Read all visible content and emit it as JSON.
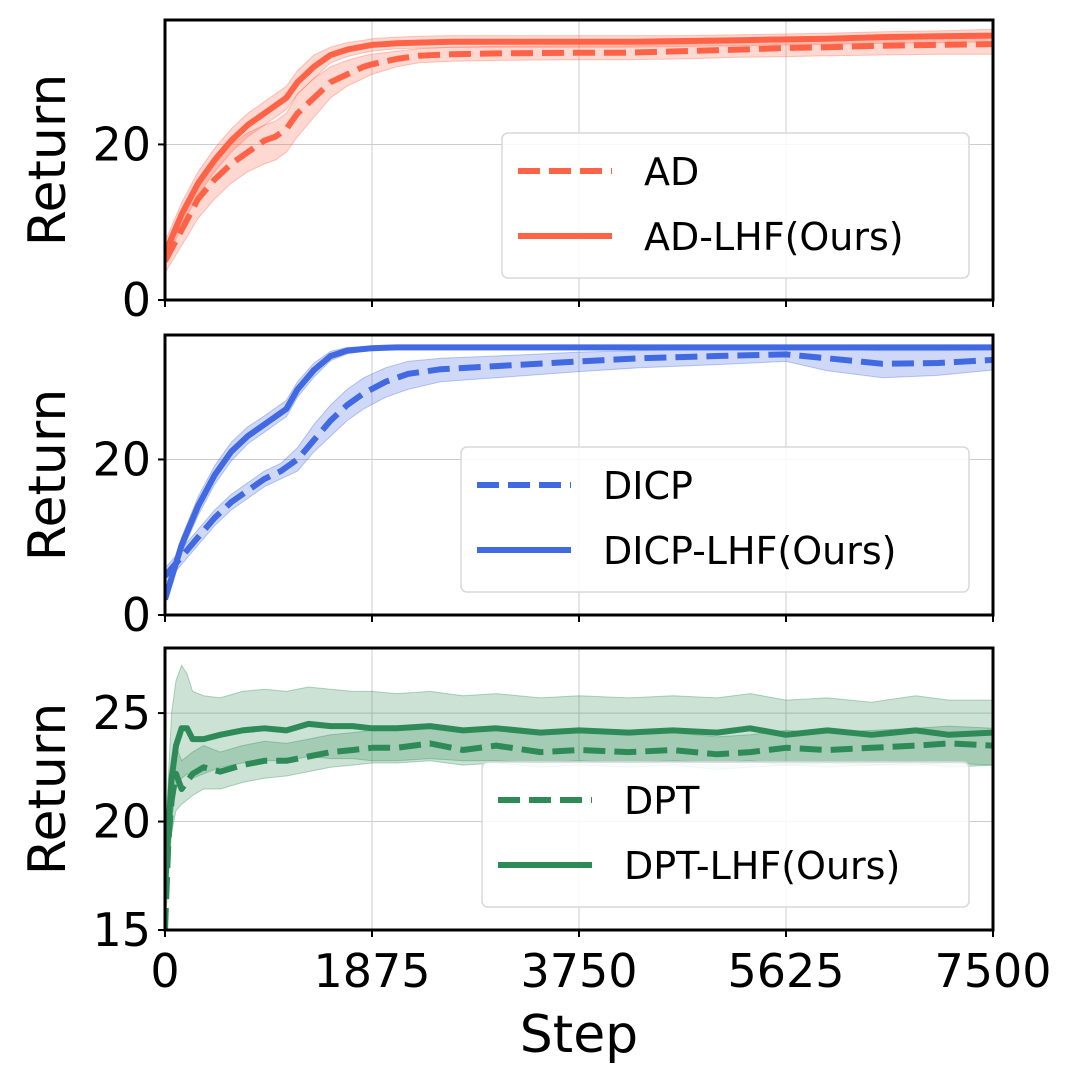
{
  "chart_data": [
    {
      "type": "line",
      "panel": "top",
      "xlabel": "",
      "ylabel": "Return",
      "xlim": [
        0,
        7500
      ],
      "ylim": [
        0,
        36
      ],
      "yticks": [
        0,
        20
      ],
      "xticks": [
        0,
        1875,
        3750,
        5625,
        7500
      ],
      "show_xticklabels": false,
      "grid": true,
      "legend_position": "center-right",
      "series": [
        {
          "name": "AD",
          "style": "dashed",
          "color": "#ff6347",
          "x": [
            0,
            150,
            300,
            450,
            600,
            750,
            900,
            1000,
            1100,
            1200,
            1350,
            1500,
            1650,
            1800,
            1875,
            2100,
            2300,
            2600,
            3000,
            3750,
            4200,
            4700,
            5200,
            5625,
            6000,
            6500,
            7000,
            7500
          ],
          "y": [
            5,
            9,
            13,
            15.5,
            17.5,
            19,
            20.5,
            21,
            22,
            24,
            26,
            28,
            29,
            30,
            30.3,
            31,
            31.4,
            31.6,
            31.7,
            31.8,
            31.8,
            32.0,
            32.2,
            32.4,
            32.5,
            32.7,
            32.8,
            32.9
          ],
          "band_lower": [
            3.5,
            7,
            10.5,
            13,
            15,
            16.5,
            17.5,
            18,
            19,
            21,
            23.5,
            26,
            27.5,
            28.5,
            29,
            30,
            30.5,
            30.7,
            30.8,
            30.9,
            30.9,
            31.0,
            31.2,
            31.3,
            31.4,
            31.5,
            31.6,
            31.6
          ],
          "band_upper": [
            6.5,
            11,
            15,
            18,
            20,
            21.5,
            22.5,
            23,
            24,
            26.5,
            28.5,
            30,
            30.8,
            31.4,
            31.6,
            32,
            32.3,
            32.5,
            32.6,
            32.7,
            32.7,
            32.9,
            33.1,
            33.3,
            33.4,
            33.6,
            33.8,
            34.0
          ]
        },
        {
          "name": "AD-LHF(Ours)",
          "style": "solid",
          "color": "#ff6347",
          "x": [
            0,
            150,
            300,
            450,
            600,
            750,
            900,
            1000,
            1100,
            1200,
            1350,
            1500,
            1650,
            1800,
            1875,
            2100,
            2300,
            2600,
            3000,
            3750,
            4200,
            4700,
            5200,
            5625,
            6000,
            6500,
            7000,
            7500
          ],
          "y": [
            6,
            11,
            15,
            18,
            20.5,
            22.5,
            24,
            25,
            26,
            28,
            30,
            31.5,
            32.2,
            32.6,
            32.8,
            33,
            33.1,
            33.2,
            33.2,
            33.2,
            33.2,
            33.3,
            33.4,
            33.5,
            33.6,
            33.8,
            33.9,
            34.0
          ],
          "band_lower": [
            4.5,
            9.5,
            13.5,
            16.5,
            19,
            21,
            22.5,
            23.5,
            24.5,
            26.5,
            28.5,
            30.5,
            31.3,
            31.8,
            32.0,
            32.3,
            32.4,
            32.5,
            32.5,
            32.5,
            32.5,
            32.6,
            32.7,
            32.8,
            32.9,
            33.0,
            33.1,
            33.2
          ],
          "band_upper": [
            7.5,
            12.5,
            16.5,
            19.5,
            22,
            24,
            25.5,
            26.5,
            27.5,
            29.5,
            31.5,
            32.5,
            33.1,
            33.4,
            33.6,
            33.8,
            33.9,
            34.0,
            34.0,
            34.0,
            34.0,
            34.0,
            34.1,
            34.2,
            34.3,
            34.5,
            34.6,
            34.8
          ]
        }
      ]
    },
    {
      "type": "line",
      "panel": "middle",
      "xlabel": "",
      "ylabel": "Return",
      "xlim": [
        0,
        7500
      ],
      "ylim": [
        0,
        36
      ],
      "yticks": [
        0,
        20
      ],
      "xticks": [
        0,
        1875,
        3750,
        5625,
        7500
      ],
      "show_xticklabels": false,
      "grid": true,
      "legend_position": "center-right",
      "series": [
        {
          "name": "DICP",
          "style": "dashed",
          "color": "#4169e1",
          "x": [
            0,
            150,
            300,
            450,
            600,
            750,
            900,
            1050,
            1200,
            1350,
            1500,
            1650,
            1800,
            2000,
            2200,
            2500,
            3000,
            3750,
            4300,
            5000,
            5625,
            6000,
            6500,
            7000,
            7500
          ],
          "y": [
            5,
            7.5,
            10,
            12.5,
            14.5,
            16,
            17.5,
            18.5,
            20,
            22.5,
            25,
            27,
            28.5,
            30,
            31,
            31.6,
            32,
            32.6,
            33,
            33.3,
            33.5,
            33,
            32.3,
            32.4,
            32.8
          ],
          "band_lower": [
            4,
            6.5,
            9,
            11.5,
            13.5,
            15,
            16.5,
            17.5,
            18.5,
            21,
            23,
            25,
            26.5,
            28,
            29,
            30,
            30.5,
            31.3,
            31.8,
            32.2,
            32.6,
            31.4,
            30.5,
            30.8,
            31.5
          ],
          "band_upper": [
            6,
            8.5,
            11,
            13.5,
            15.5,
            17,
            18.5,
            19.5,
            21.5,
            24.5,
            27,
            29,
            30.5,
            31.8,
            32.6,
            33,
            33.3,
            33.8,
            34,
            34.2,
            34.3,
            34.2,
            34,
            34,
            34.1
          ]
        },
        {
          "name": "DICP-LHF(Ours)",
          "style": "solid",
          "color": "#4169e1",
          "x": [
            0,
            150,
            300,
            450,
            600,
            750,
            900,
            1000,
            1100,
            1200,
            1350,
            1500,
            1650,
            1800,
            1875,
            2100,
            2500,
            3000,
            3750,
            4300,
            5000,
            5625,
            6000,
            6500,
            7000,
            7500
          ],
          "y": [
            2,
            9,
            14,
            18,
            21,
            23,
            24.5,
            25.5,
            26.5,
            29,
            31.5,
            33.3,
            34,
            34.2,
            34.3,
            34.4,
            34.4,
            34.4,
            34.4,
            34.4,
            34.4,
            34.4,
            34.4,
            34.4,
            34.4,
            34.4
          ],
          "band_lower": [
            1.5,
            8,
            12.8,
            16.8,
            19.8,
            22,
            23.5,
            24.5,
            25.5,
            28,
            30.6,
            32.7,
            33.6,
            33.9,
            34.0,
            34.1,
            34.1,
            34.1,
            34.1,
            34.1,
            34.1,
            34.1,
            34.1,
            34.1,
            34.1,
            34.1
          ],
          "band_upper": [
            2.5,
            10,
            15.2,
            19.2,
            22.2,
            24.2,
            25.6,
            26.6,
            27.6,
            30,
            32.4,
            33.9,
            34.4,
            34.5,
            34.6,
            34.7,
            34.7,
            34.7,
            34.7,
            34.7,
            34.7,
            34.7,
            34.7,
            34.7,
            34.7,
            34.7
          ]
        }
      ]
    },
    {
      "type": "line",
      "panel": "bottom",
      "xlabel": "Step",
      "ylabel": "Return",
      "xlim": [
        0,
        7500
      ],
      "ylim": [
        15,
        28
      ],
      "yticks": [
        15,
        20,
        25
      ],
      "xticks": [
        0,
        1875,
        3750,
        5625,
        7500
      ],
      "show_xticklabels": true,
      "grid": true,
      "legend_position": "center-right",
      "series": [
        {
          "name": "DPT",
          "style": "dashed",
          "color": "#2e8b57",
          "x": [
            0,
            30,
            60,
            100,
            150,
            250,
            350,
            500,
            700,
            900,
            1100,
            1300,
            1500,
            1700,
            1875,
            2100,
            2400,
            2700,
            3000,
            3400,
            3750,
            4200,
            4600,
            5000,
            5300,
            5625,
            6000,
            6400,
            6800,
            7100,
            7500
          ],
          "y": [
            15,
            19,
            21,
            22.2,
            21.5,
            22.2,
            22.5,
            22.3,
            22.6,
            22.8,
            22.8,
            23,
            23.2,
            23.3,
            23.4,
            23.4,
            23.6,
            23.3,
            23.5,
            23.2,
            23.3,
            23.2,
            23.3,
            23.1,
            23.2,
            23.4,
            23.3,
            23.4,
            23.5,
            23.6,
            23.5
          ],
          "band_lower": [
            15,
            17.5,
            19.5,
            20.5,
            20.8,
            21.2,
            21.5,
            21.5,
            21.8,
            22.0,
            22.1,
            22.3,
            22.5,
            22.6,
            22.7,
            22.7,
            22.8,
            22.6,
            22.7,
            22.5,
            22.6,
            22.5,
            22.6,
            22.4,
            22.5,
            22.6,
            22.5,
            22.6,
            22.6,
            22.7,
            22.6
          ],
          "band_upper": [
            15.5,
            20.5,
            22.5,
            23.5,
            22.8,
            23.2,
            23.5,
            23.2,
            23.5,
            23.7,
            23.6,
            23.8,
            24.0,
            24.1,
            24.2,
            24.2,
            24.4,
            24.1,
            24.3,
            24.0,
            24.1,
            24.0,
            24.1,
            23.9,
            24.0,
            24.2,
            24.1,
            24.2,
            24.3,
            24.4,
            24.3
          ]
        },
        {
          "name": "DPT-LHF(Ours)",
          "style": "solid",
          "color": "#2e8b57",
          "x": [
            0,
            30,
            60,
            100,
            150,
            200,
            250,
            350,
            500,
            700,
            900,
            1100,
            1300,
            1500,
            1700,
            1875,
            2100,
            2400,
            2700,
            3000,
            3400,
            3750,
            4200,
            4600,
            5000,
            5300,
            5625,
            6000,
            6400,
            6800,
            7100,
            7500
          ],
          "y": [
            17,
            19.5,
            22,
            23.5,
            24.3,
            24.3,
            23.8,
            23.8,
            24.0,
            24.2,
            24.3,
            24.2,
            24.5,
            24.4,
            24.4,
            24.3,
            24.3,
            24.4,
            24.2,
            24.3,
            24.1,
            24.2,
            24.1,
            24.2,
            24.1,
            24.3,
            24.0,
            24.2,
            24.0,
            24.2,
            24.0,
            24.1
          ],
          "band_lower": [
            15,
            17.5,
            20,
            21.5,
            22.0,
            22.2,
            22.0,
            22.2,
            22.5,
            22.7,
            22.8,
            22.8,
            23.0,
            22.9,
            22.9,
            22.8,
            22.8,
            22.9,
            22.8,
            22.8,
            22.7,
            22.8,
            22.7,
            22.8,
            22.7,
            22.8,
            22.6,
            22.7,
            22.6,
            22.7,
            22.5,
            22.6
          ],
          "band_upper": [
            19,
            22,
            25,
            26.5,
            27.2,
            26.8,
            26.0,
            25.8,
            25.7,
            26.0,
            26.1,
            26.0,
            26.2,
            26.1,
            26.0,
            26.0,
            25.9,
            26.0,
            25.8,
            25.9,
            25.7,
            25.8,
            25.7,
            25.8,
            25.7,
            25.9,
            25.6,
            25.7,
            25.5,
            25.8,
            25.6,
            25.6
          ]
        }
      ]
    }
  ]
}
